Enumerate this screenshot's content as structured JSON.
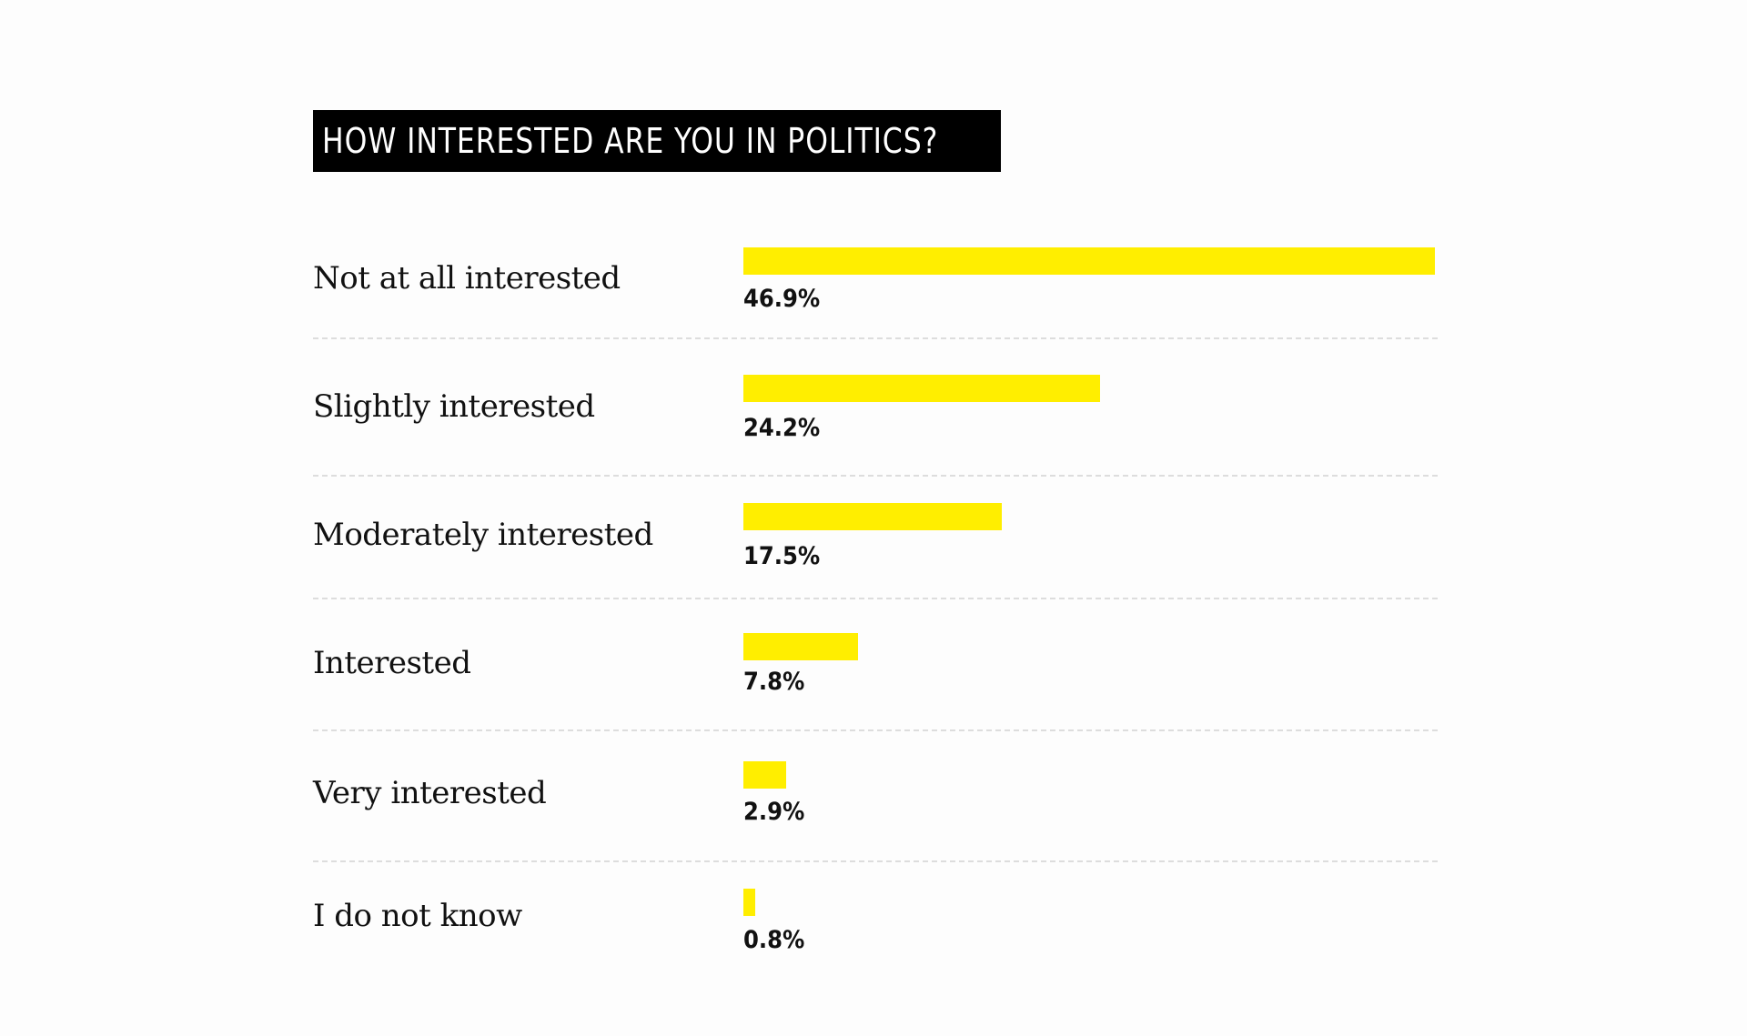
{
  "chart_data": {
    "type": "bar",
    "orientation": "horizontal",
    "title": "HOW INTERESTED ARE YOU IN POLITICS?",
    "categories": [
      "Not at all interested",
      "Slightly interested",
      "Moderately interested",
      "Interested",
      "Very interested",
      "I do not know"
    ],
    "values": [
      46.9,
      24.2,
      17.5,
      7.8,
      2.9,
      0.8
    ],
    "value_labels": [
      "46.9%",
      "24.2%",
      "17.5%",
      "7.8%",
      "2.9%",
      "0.8%"
    ],
    "unit": "%",
    "xlim": [
      0,
      46.9
    ],
    "grid": false,
    "legend": "none",
    "colors": {
      "bar": "#ffee00",
      "title_background": "#000000",
      "title_text": "#ffffff",
      "divider": "#dddddd"
    }
  }
}
